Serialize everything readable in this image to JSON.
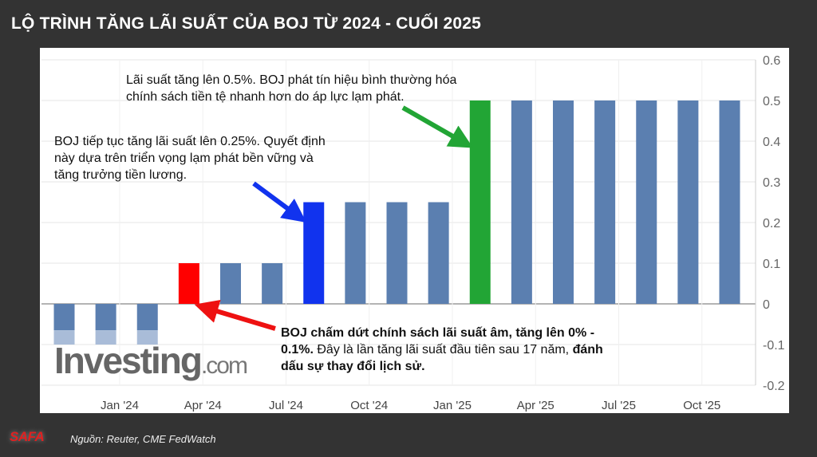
{
  "title": "LỘ TRÌNH TĂNG LÃI SUẤT CỦA BOJ TỪ 2024 - CUỐI 2025",
  "source": "Nguồn: Reuter, CME FedWatch",
  "logo_text": "SAFA",
  "watermark": {
    "main": "Investing",
    "suffix": ".com"
  },
  "annotations": {
    "green": "Lãi suất tăng lên 0.5%. BOJ phát tín hiệu bình thường hóa chính sách tiền tệ nhanh hơn do áp lực lạm phát.",
    "blue": "BOJ tiếp tục tăng lãi suất lên 0.25%. Quyết định này dựa trên triển vọng lạm phát bền vững và tăng trưởng tiền lương.",
    "red_bold1": "BOJ chấm dứt chính sách lãi suất âm, tăng lên 0% - 0.1%.",
    "red_normal": " Đây là lần tăng lãi suất đầu tiên sau 17 năm,",
    "red_bold2": " đánh dấu sự thay đổi lịch sử."
  },
  "chart_data": {
    "type": "bar",
    "title": "",
    "xlabel": "",
    "ylabel": "",
    "ylim": [
      -0.2,
      0.6
    ],
    "yticks": [
      "0.6",
      "0.5",
      "0.4",
      "0.3",
      "0.2",
      "0.1",
      "0",
      "-0.1",
      "-0.2"
    ],
    "ytick_values": [
      0.6,
      0.5,
      0.4,
      0.3,
      0.2,
      0.1,
      0,
      -0.1,
      -0.2
    ],
    "xticks": [
      "Jan '24",
      "Apr '24",
      "Jul '24",
      "Oct '24",
      "Jan '25",
      "Apr '25",
      "Jul '25",
      "Oct '25"
    ],
    "xtick_months_from_jan2024": [
      0,
      3,
      6,
      9,
      12,
      15,
      18,
      21
    ],
    "x_months_from_jan2024": [
      -2,
      -0.5,
      1,
      2.5,
      4,
      5.5,
      7,
      8.5,
      10,
      11.5,
      13,
      14.5,
      16,
      17.5,
      19,
      20.5,
      22
    ],
    "values": [
      -0.1,
      -0.1,
      -0.1,
      0.1,
      0.1,
      0.1,
      0.25,
      0.25,
      0.25,
      0.25,
      0.5,
      0.5,
      0.5,
      0.5,
      0.5,
      0.5,
      0.5
    ],
    "highlight": {
      "3": "#ff0000",
      "6": "#1133ee",
      "10": "#22a535"
    },
    "bar_color": "#5b7fb0",
    "grid": true,
    "legend": "none"
  }
}
